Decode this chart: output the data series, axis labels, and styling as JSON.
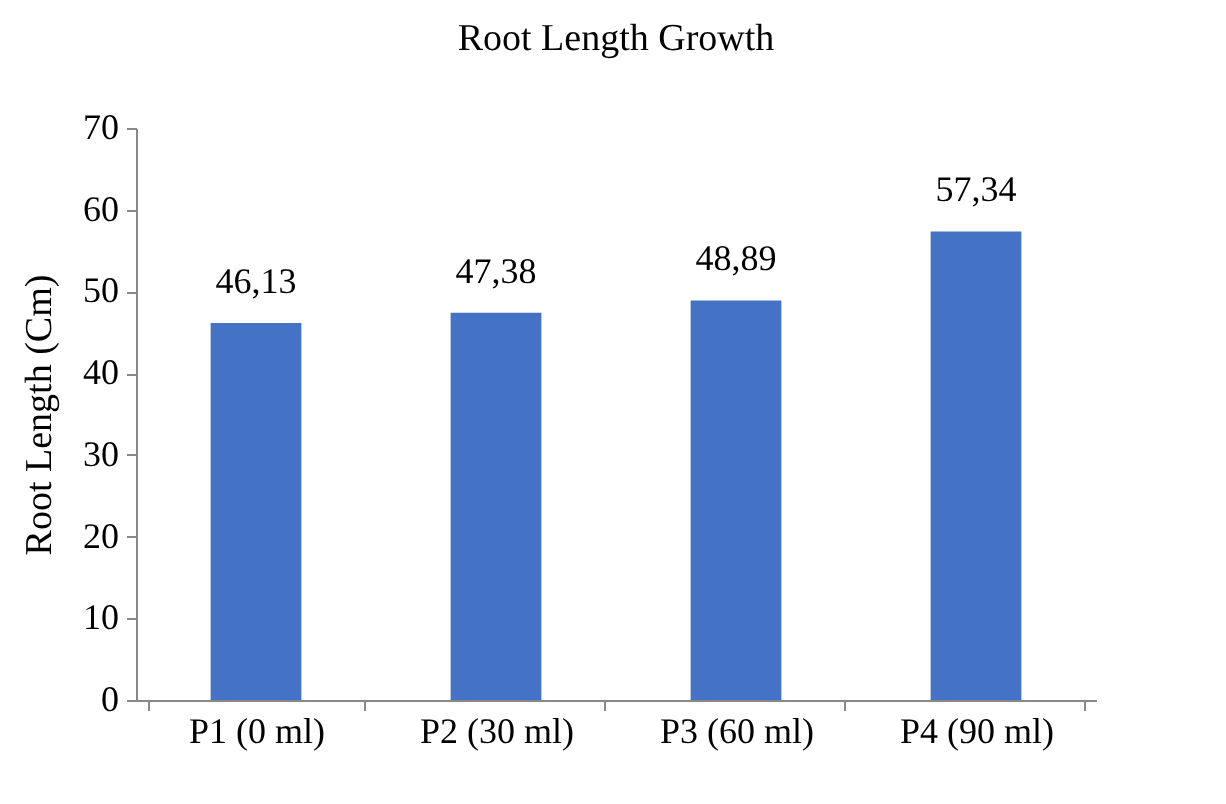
{
  "chart_data": {
    "type": "bar",
    "title": "Root Length Growth",
    "ylabel": "Root Length (Cm)",
    "categories": [
      "P1 (0 ml)",
      "P2 (30 ml)",
      "P3 (60 ml)",
      "P4 (90 ml)"
    ],
    "values": [
      46.13,
      47.38,
      48.89,
      57.34
    ],
    "value_labels": [
      "46,13",
      "47,38",
      "48,89",
      "57,34"
    ],
    "color": "#4472c4",
    "ylim": [
      0,
      70
    ],
    "yticks": [
      0,
      10,
      20,
      30,
      40,
      50,
      60,
      70
    ],
    "grid": false
  }
}
